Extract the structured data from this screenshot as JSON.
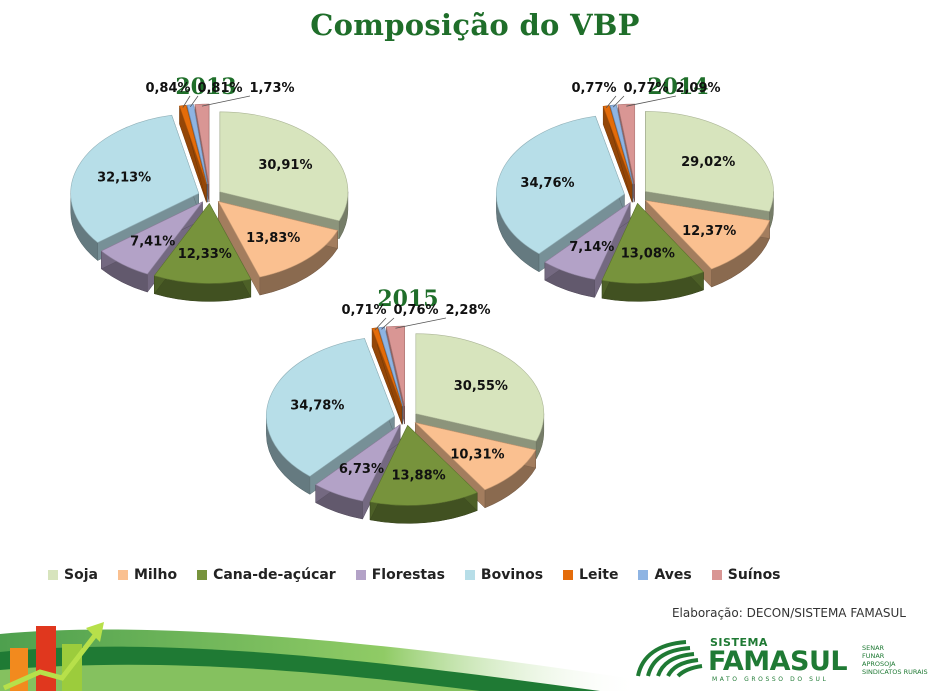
{
  "title": "Composição do VBP",
  "colors": {
    "title": "#1f6e2a",
    "Soja": "#d7e4bd",
    "Milho": "#fac090",
    "Cana-de-açúcar": "#77933c",
    "Florestas": "#b3a2c7",
    "Bovinos": "#b7dee8",
    "Leite": "#e46c0a",
    "Aves": "#8eb4e3",
    "Suínos": "#d99694"
  },
  "chart_data": [
    {
      "type": "pie",
      "title": "2013",
      "labels": [
        "Soja",
        "Milho",
        "Cana-de-açúcar",
        "Florestas",
        "Bovinos",
        "Leite",
        "Aves",
        "Suínos"
      ],
      "values": [
        30.91,
        13.83,
        12.33,
        7.41,
        32.13,
        0.84,
        0.81,
        1.73
      ],
      "data_labels": [
        "30,91%",
        "13,83%",
        "12,33%",
        "7,41%",
        "32,13%",
        "0,84%",
        "0,81%",
        "1,73%"
      ],
      "exploded": true,
      "style": "3d"
    },
    {
      "type": "pie",
      "title": "2014",
      "labels": [
        "Soja",
        "Milho",
        "Cana-de-açúcar",
        "Florestas",
        "Bovinos",
        "Leite",
        "Aves",
        "Suínos"
      ],
      "values": [
        29.02,
        12.37,
        13.08,
        7.14,
        34.76,
        0.77,
        0.77,
        2.09
      ],
      "data_labels": [
        "29,02%",
        "12,37%",
        "13,08%",
        "7,14%",
        "34,76%",
        "0,77%",
        "0,77%",
        "2,09%"
      ],
      "exploded": true,
      "style": "3d"
    },
    {
      "type": "pie",
      "title": "2015",
      "labels": [
        "Soja",
        "Milho",
        "Cana-de-açúcar",
        "Florestas",
        "Bovinos",
        "Leite",
        "Aves",
        "Suínos"
      ],
      "values": [
        30.55,
        10.31,
        13.88,
        6.73,
        34.78,
        0.71,
        0.76,
        2.28
      ],
      "data_labels": [
        "30,55%",
        "10,31%",
        "13,88%",
        "6,73%",
        "34,78%",
        "0,71%",
        "0,76%",
        "2,28%"
      ],
      "exploded": true,
      "style": "3d"
    }
  ],
  "legend": {
    "position": "bottom",
    "items": [
      "Soja",
      "Milho",
      "Cana-de-açúcar",
      "Florestas",
      "Bovinos",
      "Leite",
      "Aves",
      "Suínos"
    ]
  },
  "credit": "Elaboração: DECON/SISTEMA FAMASUL",
  "logo": {
    "sistema": "SISTEMA",
    "name": "FAMASUL",
    "tagline": "MATO GROSSO DO SUL",
    "entities": [
      "SENAR",
      "FUNAR",
      "APROSOJA",
      "SINDICATOS RURAIS"
    ]
  },
  "icons": {
    "logo_mark": "famasul-stripes-icon",
    "decoration": "growth-bars-arrow-icon"
  }
}
